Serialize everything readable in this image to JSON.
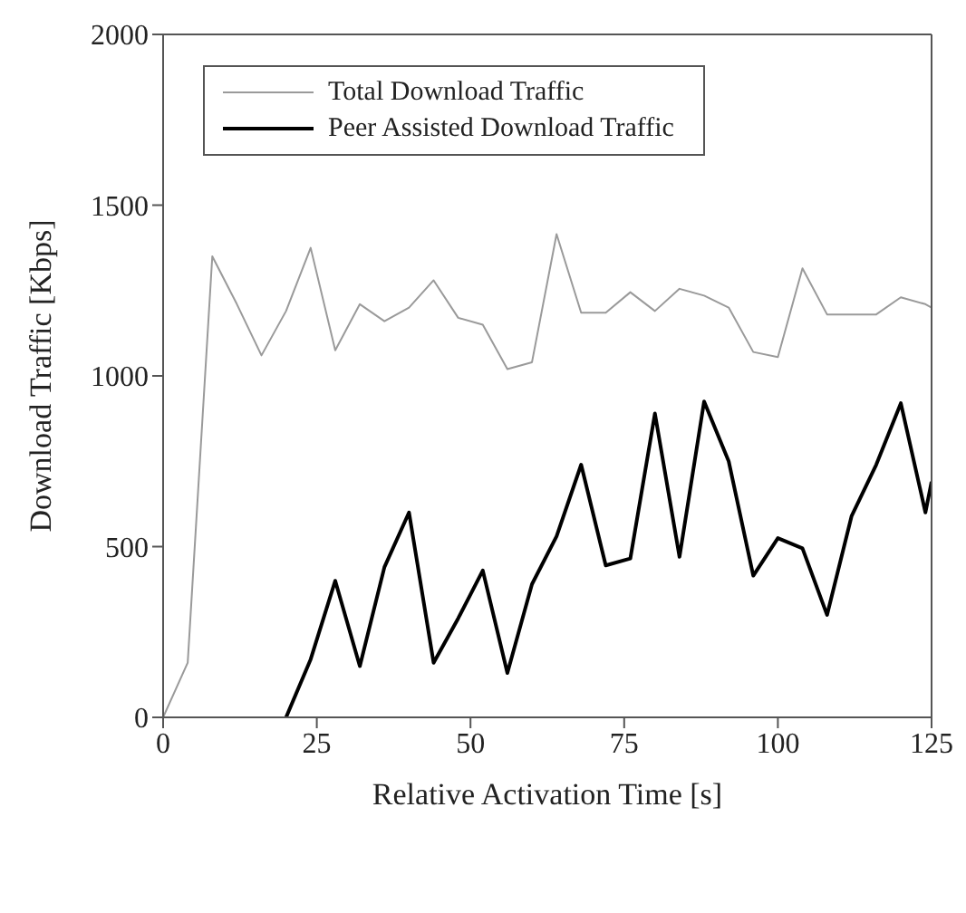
{
  "chart_data": {
    "type": "line",
    "xlabel": "Relative Activation Time [s]",
    "ylabel": "Download Traffic [Kbps]",
    "xlim": [
      0,
      125
    ],
    "xticks": [
      0,
      25,
      50,
      75,
      100,
      125
    ],
    "ylim": [
      0,
      2000
    ],
    "yticks": [
      0,
      500,
      1000,
      1500,
      2000
    ],
    "legend": "top left",
    "marker": "none",
    "series": [
      {
        "name": "Total Download Traffic",
        "color": "#9a9a9a",
        "x": [
          0,
          4,
          8,
          12,
          16,
          20,
          24,
          28,
          32,
          36,
          40,
          44,
          48,
          52,
          56,
          60,
          64,
          68,
          72,
          76,
          80,
          84,
          88,
          92,
          96,
          100,
          104,
          108,
          112,
          116,
          120,
          124,
          125
        ],
        "values": [
          0,
          160,
          1350,
          1210,
          1060,
          1190,
          1375,
          1075,
          1210,
          1160,
          1200,
          1280,
          1170,
          1150,
          1020,
          1040,
          1415,
          1185,
          1185,
          1245,
          1190,
          1255,
          1235,
          1200,
          1070,
          1055,
          1315,
          1180,
          1180,
          1180,
          1230,
          1210,
          1200
        ]
      },
      {
        "name": "Peer Assisted Download Traffic",
        "color": "#000000",
        "x": [
          20,
          24,
          28,
          32,
          36,
          40,
          44,
          48,
          52,
          56,
          60,
          64,
          68,
          72,
          76,
          80,
          84,
          88,
          92,
          96,
          100,
          104,
          108,
          112,
          116,
          120,
          124,
          125
        ],
        "values": [
          0,
          170,
          400,
          150,
          440,
          600,
          160,
          290,
          430,
          130,
          390,
          530,
          740,
          445,
          465,
          890,
          470,
          925,
          750,
          415,
          525,
          495,
          300,
          590,
          740,
          920,
          600,
          690
        ]
      }
    ]
  }
}
